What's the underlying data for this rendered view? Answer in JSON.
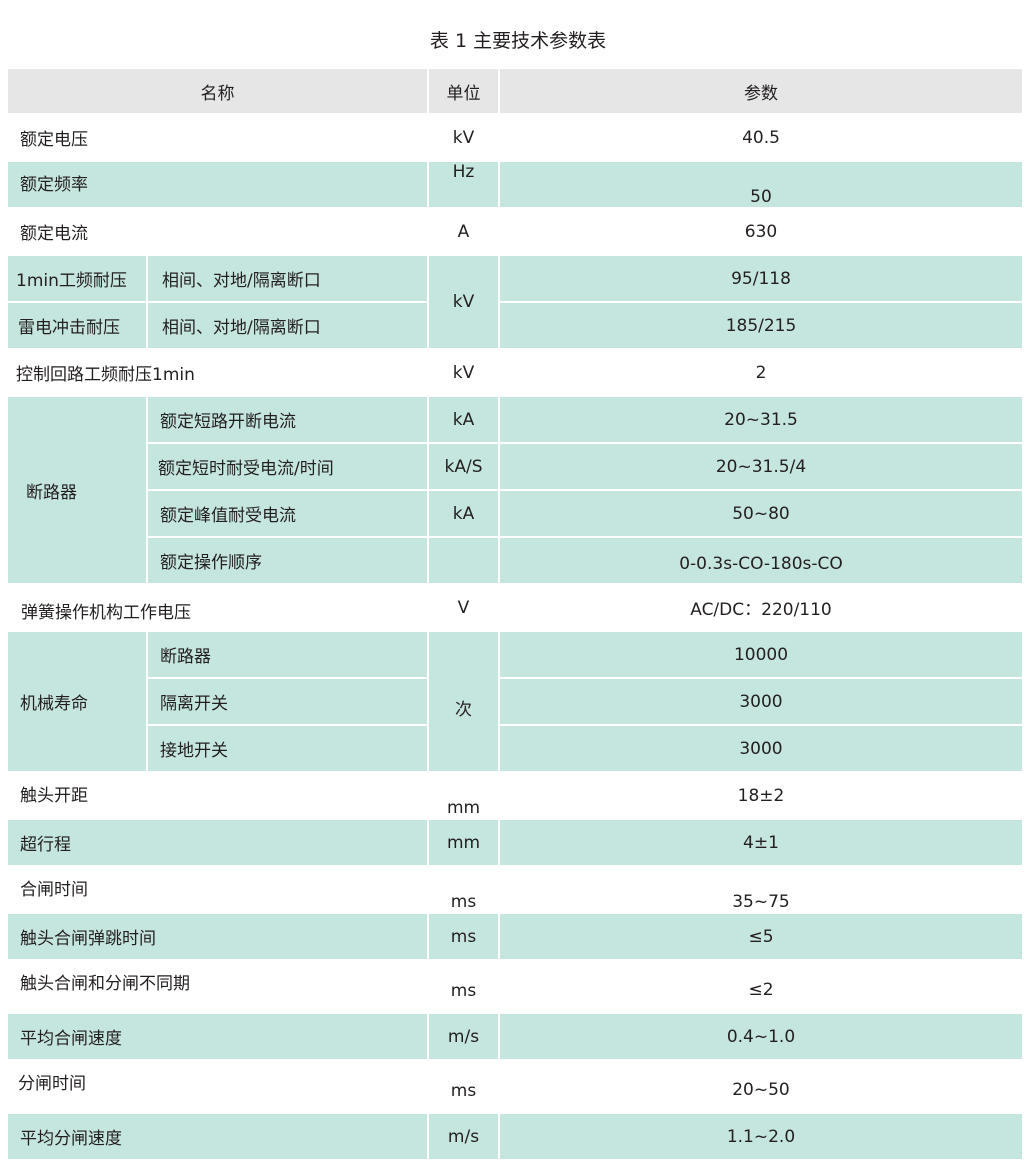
{
  "title": "表 1 主要技术参数表",
  "header": {
    "name": "名称",
    "unit": "单位",
    "value": "参数"
  },
  "colors": {
    "header_bg": "#e6e6e6",
    "teal_row": "#c5e5df"
  },
  "rows": [
    {
      "name": "额定电压",
      "unit": "kV",
      "value": "40.5"
    },
    {
      "name": "额定频率",
      "unit": "Hz",
      "value": "50"
    },
    {
      "name": "额定电流",
      "unit": "A",
      "value": "630"
    },
    {
      "name": "1min工频耐压",
      "sub": "相间、对地/隔离断口",
      "unit": "kV",
      "value": "95/118"
    },
    {
      "name": "雷电冲击耐压",
      "sub": "相间、对地/隔离断口",
      "value": "185/215"
    },
    {
      "name": "控制回路工频耐压1min",
      "unit": "kV",
      "value": "2"
    },
    {
      "name": "断路器",
      "sub": "额定短路开断电流",
      "unit": "kA",
      "value": "20~31.5"
    },
    {
      "sub": "额定短时耐受电流/时间",
      "unit": "kA/S",
      "value": "20~31.5/4"
    },
    {
      "sub": "额定峰值耐受电流",
      "unit": "kA",
      "value": "50~80"
    },
    {
      "sub": "额定操作顺序",
      "unit": "",
      "value": "0-0.3s-CO-180s-CO"
    },
    {
      "name": "弹簧操作机构工作电压",
      "unit": "V",
      "value": "AC/DC：220/110"
    },
    {
      "name": "机械寿命",
      "sub": "断路器",
      "unit": "次",
      "value": "10000"
    },
    {
      "sub": "隔离开关",
      "value": "3000"
    },
    {
      "sub": "接地开关",
      "value": "3000"
    },
    {
      "name": "触头开距",
      "unit": "mm",
      "value": "18±2"
    },
    {
      "name": "超行程",
      "unit": "mm",
      "value": "4±1"
    },
    {
      "name": "合闸时间",
      "unit": "ms",
      "value": "35~75"
    },
    {
      "name": "触头合闸弹跳时间",
      "unit": "ms",
      "value": "≤5"
    },
    {
      "name": "触头合闸和分闸不同期",
      "unit": "ms",
      "value": "≤2"
    },
    {
      "name": "平均合闸速度",
      "unit": "m/s",
      "value": "0.4~1.0"
    },
    {
      "name": "分闸时间",
      "unit": "ms",
      "value": "20~50"
    },
    {
      "name": "平均分闸速度",
      "unit": "m/s",
      "value": "1.1~2.0"
    }
  ]
}
